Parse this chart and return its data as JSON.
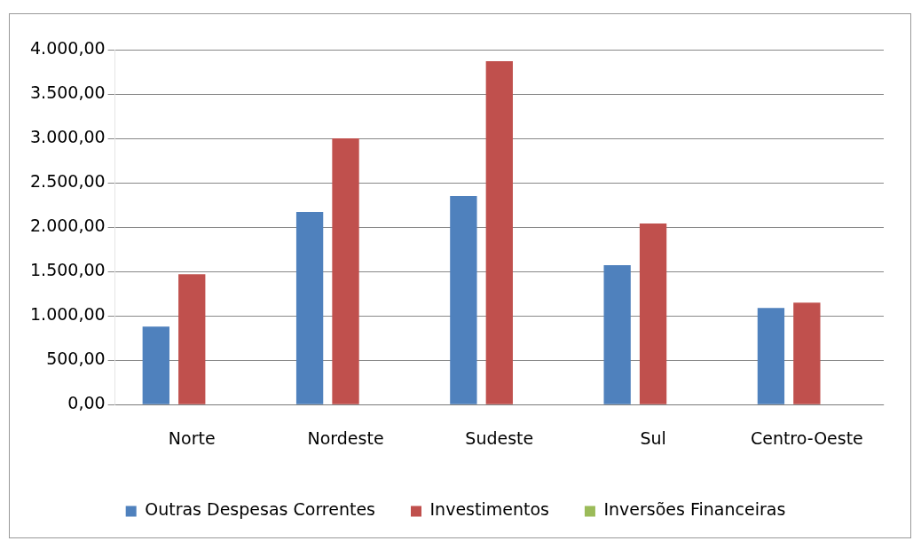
{
  "chart_data": {
    "type": "bar",
    "categories": [
      "Norte",
      "Nordeste",
      "Sudeste",
      "Sul",
      "Centro-Oeste"
    ],
    "series": [
      {
        "name": "Outras Despesas Correntes",
        "color": "#4f81bd",
        "values": [
          880,
          2170,
          2350,
          1570,
          1090
        ]
      },
      {
        "name": "Investimentos",
        "color": "#c0504d",
        "values": [
          1470,
          3000,
          3870,
          2040,
          1150
        ]
      },
      {
        "name": "Inversões Financeiras",
        "color": "#9bbb59",
        "values": [
          0,
          0,
          0,
          0,
          0
        ]
      }
    ],
    "ylim": [
      0,
      4000
    ],
    "yticks": [
      {
        "value": 0,
        "label": "0,00"
      },
      {
        "value": 500,
        "label": "500,00"
      },
      {
        "value": 1000,
        "label": "1.000,00"
      },
      {
        "value": 1500,
        "label": "1.500,00"
      },
      {
        "value": 2000,
        "label": "2.000,00"
      },
      {
        "value": 2500,
        "label": "2.500,00"
      },
      {
        "value": 3000,
        "label": "3.000,00"
      },
      {
        "value": 3500,
        "label": "3.500,00"
      },
      {
        "value": 4000,
        "label": "4.000,00"
      }
    ],
    "grid": "y",
    "legend": "bottom"
  }
}
